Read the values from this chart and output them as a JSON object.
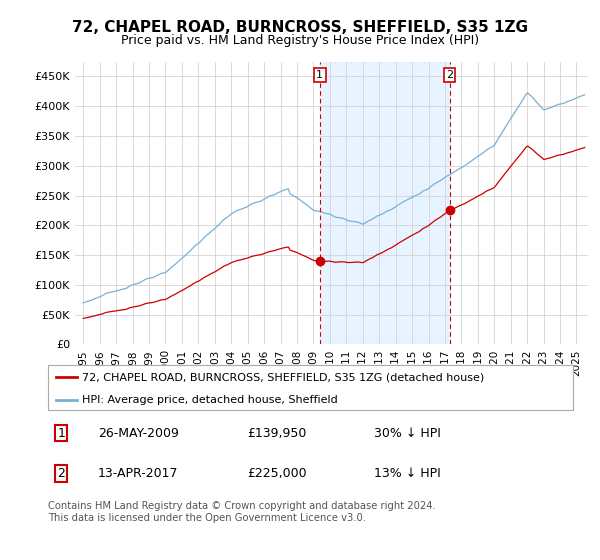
{
  "title": "72, CHAPEL ROAD, BURNCROSS, SHEFFIELD, S35 1ZG",
  "subtitle": "Price paid vs. HM Land Registry's House Price Index (HPI)",
  "ylabel_ticks": [
    "£0",
    "£50K",
    "£100K",
    "£150K",
    "£200K",
    "£250K",
    "£300K",
    "£350K",
    "£400K",
    "£450K"
  ],
  "ytick_values": [
    0,
    50000,
    100000,
    150000,
    200000,
    250000,
    300000,
    350000,
    400000,
    450000
  ],
  "ylim": [
    0,
    475000
  ],
  "xlim_start": 1994.5,
  "xlim_end": 2025.7,
  "sale1_x": 2009.39,
  "sale1_y": 139950,
  "sale2_x": 2017.28,
  "sale2_y": 225000,
  "line_property_color": "#cc0000",
  "line_hpi_color": "#7ab0d4",
  "vline_color": "#cc0000",
  "shade_color": "#ddeeff",
  "background_color": "#ffffff",
  "grid_color": "#cccccc",
  "legend_label_property": "72, CHAPEL ROAD, BURNCROSS, SHEFFIELD, S35 1ZG (detached house)",
  "legend_label_hpi": "HPI: Average price, detached house, Sheffield",
  "sale1_date": "26-MAY-2009",
  "sale1_price": "£139,950",
  "sale1_hpi": "30% ↓ HPI",
  "sale2_date": "13-APR-2017",
  "sale2_price": "£225,000",
  "sale2_hpi": "13% ↓ HPI",
  "footer": "Contains HM Land Registry data © Crown copyright and database right 2024.\nThis data is licensed under the Open Government Licence v3.0.",
  "title_fontsize": 11,
  "subtitle_fontsize": 9,
  "tick_fontsize": 8
}
